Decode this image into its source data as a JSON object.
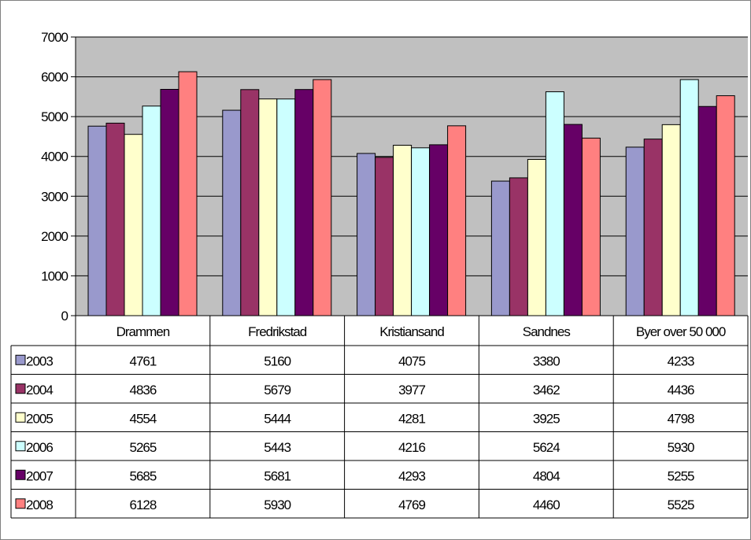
{
  "chart_data": {
    "type": "bar",
    "categories": [
      "Drammen",
      "Fredrikstad",
      "Kristiansand",
      "Sandnes",
      "Byer over 50 000"
    ],
    "series": [
      {
        "name": "2003",
        "color": "#9999cc",
        "values": [
          4761,
          5160,
          4075,
          3380,
          4233
        ]
      },
      {
        "name": "2004",
        "color": "#993366",
        "values": [
          4836,
          5679,
          3977,
          3462,
          4436
        ]
      },
      {
        "name": "2005",
        "color": "#ffffcc",
        "values": [
          4554,
          5444,
          4281,
          3925,
          4798
        ]
      },
      {
        "name": "2006",
        "color": "#ccffff",
        "values": [
          5265,
          5443,
          4216,
          5624,
          5930
        ]
      },
      {
        "name": "2007",
        "color": "#660066",
        "values": [
          5685,
          5681,
          4293,
          4804,
          5255
        ]
      },
      {
        "name": "2008",
        "color": "#ff8080",
        "values": [
          6128,
          5930,
          4769,
          4460,
          5525
        ]
      }
    ],
    "yticks": [
      0,
      1000,
      2000,
      3000,
      4000,
      5000,
      6000,
      7000
    ],
    "ylim": [
      0,
      7000
    ],
    "grid": true,
    "plot_background": "#c0c0c0",
    "legend": "data-table",
    "title": "",
    "xlabel": "",
    "ylabel": ""
  }
}
